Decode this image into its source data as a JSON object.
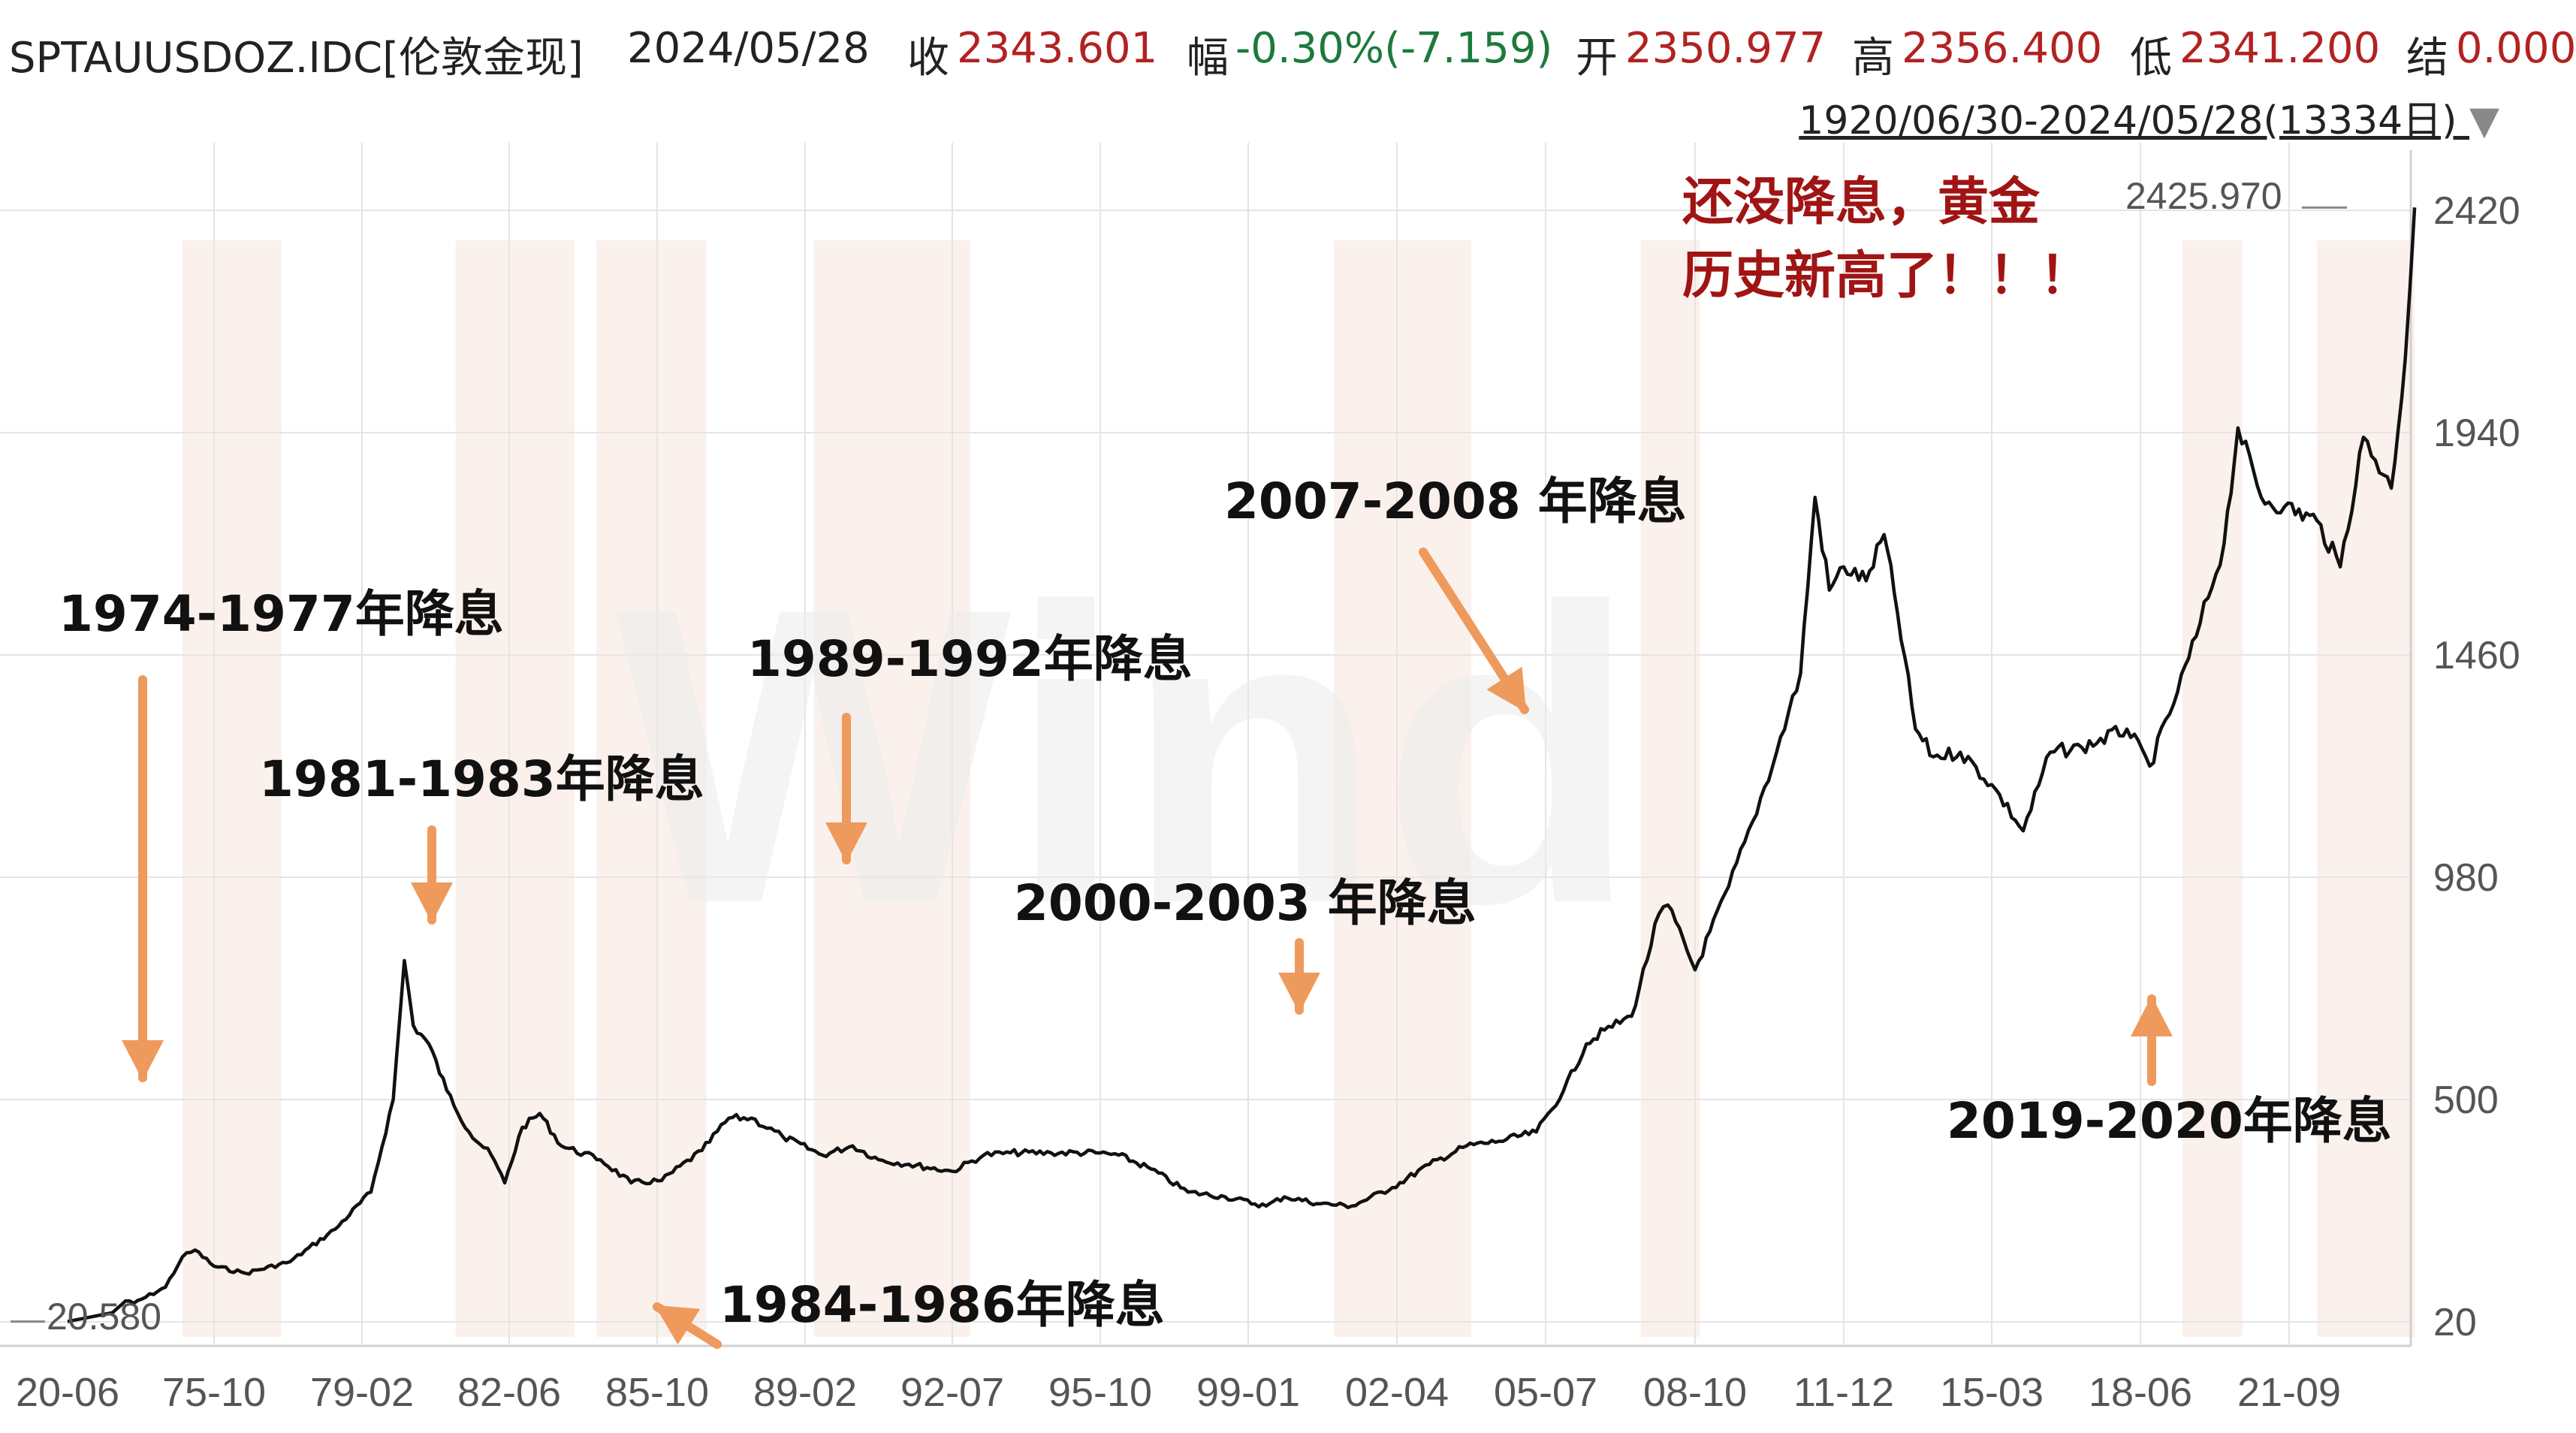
{
  "header": {
    "symbol": "SPTAUUSDOZ.IDC[伦敦金现]",
    "date": "2024/05/28",
    "close_label": "收",
    "close_value": "2343.601",
    "change_label": "幅",
    "change_value": "-0.30%(-7.159)",
    "open_label": "开",
    "open_value": "2350.977",
    "high_label": "高",
    "high_value": "2356.400",
    "low_label": "低",
    "low_value": "2341.200",
    "settle_label": "结",
    "settle_value": "0.000",
    "range_text": "1920/06/30-2024/05/28(13334日)"
  },
  "watermark": "Wind",
  "colors": {
    "line": "#111111",
    "grid": "#e4e4e4",
    "band": "#f8e8e0",
    "arrow": "#ee9a5c",
    "note": "#a01414"
  },
  "chart_data": {
    "type": "line",
    "title": "",
    "xlabel": "",
    "ylabel": "",
    "y_ticks": [
      20,
      500,
      980,
      1460,
      1940,
      2420
    ],
    "x_ticks": [
      "20-06",
      "75-10",
      "79-02",
      "82-06",
      "85-10",
      "89-02",
      "92-07",
      "95-10",
      "99-01",
      "02-04",
      "05-07",
      "08-10",
      "11-12",
      "15-03",
      "18-06",
      "21-09"
    ],
    "ylim": [
      20,
      2500
    ],
    "grid": true,
    "series": [
      {
        "x": [
          1920.5,
          1971.0,
          1971.6,
          1972.0,
          1973.5,
          1974.3,
          1974.9,
          1975.8,
          1976.5,
          1977.5,
          1978.5,
          1979.3,
          1979.8,
          1980.05,
          1980.25,
          1980.6,
          1981.0,
          1981.5,
          1982.0,
          1982.3,
          1982.7,
          1983.1,
          1983.6,
          1984.5,
          1985.2,
          1985.9,
          1986.8,
          1987.4,
          1987.9,
          1988.6,
          1989.5,
          1990.2,
          1990.8,
          1991.5,
          1992.5,
          1993.2,
          1993.8,
          1994.7,
          1995.7,
          1996.2,
          1996.9,
          1997.7,
          1998.5,
          1999.4,
          1999.8,
          2000.6,
          2001.3,
          2002.2,
          2003.0,
          2003.8,
          2004.5,
          2005.3,
          2005.9,
          2006.4,
          2006.8,
          2007.4,
          2008.0,
          2008.2,
          2008.8,
          2009.5,
          2010.0,
          2010.5,
          2011.0,
          2011.3,
          2011.6,
          2011.9,
          2012.4,
          2012.8,
          2013.1,
          2013.5,
          2013.9,
          2014.5,
          2015.2,
          2015.9,
          2016.5,
          2017.2,
          2018.2,
          2018.7,
          2019.3,
          2019.7,
          2020.3,
          2020.6,
          2021.1,
          2021.6,
          2022.3,
          2022.8,
          2023.3,
          2023.9,
          2024.2,
          2024.4
        ],
        "y": [
          20.58,
          40,
          65,
          60,
          95,
          160,
          175,
          140,
          125,
          150,
          220,
          300,
          500,
          800,
          660,
          620,
          520,
          430,
          380,
          320,
          440,
          470,
          400,
          370,
          320,
          325,
          390,
          460,
          460,
          420,
          380,
          400,
          370,
          360,
          345,
          380,
          385,
          385,
          385,
          380,
          350,
          300,
          290,
          270,
          290,
          275,
          270,
          310,
          360,
          400,
          410,
          430,
          520,
          620,
          650,
          680,
          900,
          920,
          780,
          960,
          1100,
          1250,
          1420,
          1800,
          1600,
          1650,
          1620,
          1720,
          1550,
          1300,
          1240,
          1250,
          1180,
          1080,
          1250,
          1260,
          1300,
          1220,
          1380,
          1500,
          1700,
          1950,
          1800,
          1780,
          1750,
          1650,
          1930,
          1820,
          2100,
          2425.97
        ]
      }
    ],
    "annotations": [
      "1974-1977年降息",
      "1981-1983年降息",
      "1984-1986年降息",
      "1989-1992年降息",
      "2000-2003 年降息",
      "2007-2008 年降息",
      "2019-2020年降息"
    ],
    "note_line1": "还没降息，黄金",
    "note_line2": "历史新高了！！！",
    "peak_label": "2425.970",
    "start_label": "20.580"
  }
}
